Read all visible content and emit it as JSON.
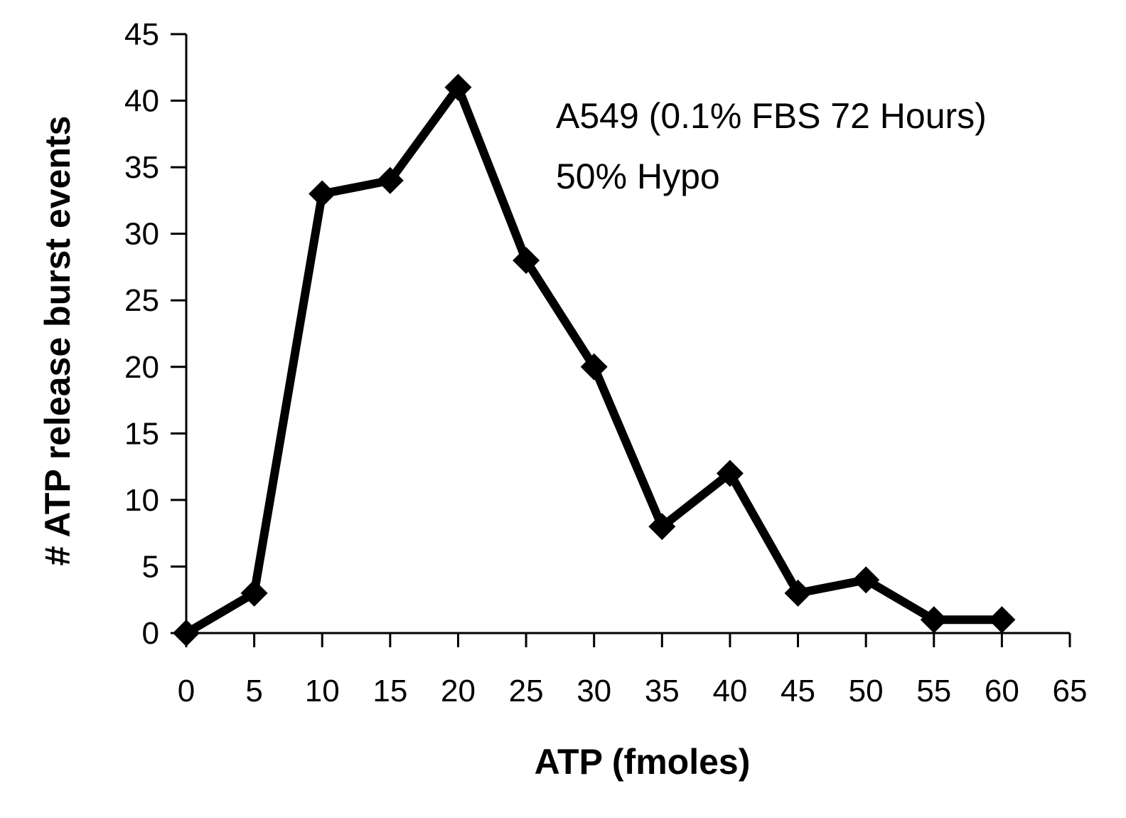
{
  "chart_data": {
    "type": "line",
    "title": "",
    "xlabel": "ATP (fmoles)",
    "ylabel": "# ATP release burst events",
    "xlim": [
      0,
      65
    ],
    "ylim": [
      0,
      45
    ],
    "xticks": [
      0,
      5,
      10,
      15,
      20,
      25,
      30,
      35,
      40,
      45,
      50,
      55,
      60,
      65
    ],
    "yticks": [
      0,
      5,
      10,
      15,
      20,
      25,
      30,
      35,
      40,
      45
    ],
    "grid": false,
    "legend": "none",
    "annotations": [
      "A549 (0.1% FBS 72 Hours)",
      "50% Hypo"
    ],
    "series": [
      {
        "color": "#000000",
        "marker": "diamond",
        "x": [
          0,
          5,
          10,
          15,
          20,
          25,
          30,
          35,
          40,
          45,
          50,
          55,
          60
        ],
        "y": [
          0,
          3,
          33,
          34,
          41,
          28,
          20,
          8,
          12,
          3,
          4,
          1,
          1
        ]
      }
    ]
  }
}
